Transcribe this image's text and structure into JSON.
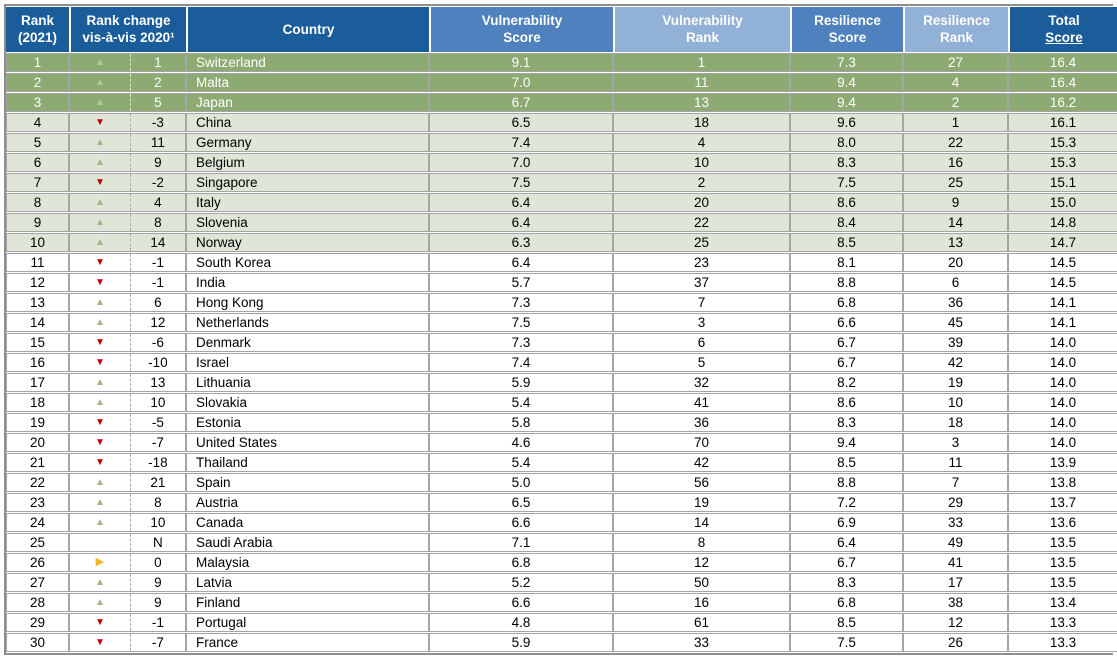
{
  "colors": {
    "header_dark_blue": "#1B5C9B",
    "header_medium_blue": "#4E81BD",
    "header_light_blue": "#92B1D6",
    "top_row_green": "#8DAA72",
    "alt_row_green": "#DFE6D7",
    "arrow_up_green": "#A3B583",
    "arrow_up_green_light": "#B4C797",
    "arrow_down_red": "#C00000",
    "arrow_right_orange": "#F5B323",
    "grid_gray": "#A5A5A8",
    "outer_gray": "#8E8E8E"
  },
  "icons": {
    "up": "▲",
    "down": "▼",
    "right": "▶",
    "none": ""
  },
  "table": {
    "headers": [
      {
        "id": "rank",
        "line1": "Rank",
        "line2": "(2021)"
      },
      {
        "id": "rank_change",
        "line1": "Rank change",
        "line2": "vis-à-vis 2020¹"
      },
      {
        "id": "country",
        "line1": "Country",
        "line2": ""
      },
      {
        "id": "vulnerability_score",
        "line1": "Vulnerability",
        "line2": "Score"
      },
      {
        "id": "vulnerability_rank",
        "line1": "Vulnerability",
        "line2": "Rank"
      },
      {
        "id": "resilience_score",
        "line1": "Resilience",
        "line2": "Score"
      },
      {
        "id": "resilience_rank",
        "line1": "Resilience",
        "line2": "Rank"
      },
      {
        "id": "total_score",
        "line1": "Total",
        "line2": "Score"
      }
    ],
    "rows": [
      {
        "rank": "1",
        "change_direction": "up",
        "change_value": "1",
        "country": "Switzerland",
        "vulnerability_score": "9.1",
        "vulnerability_rank": "1",
        "resilience_score": "7.3",
        "resilience_rank": "27",
        "total_score": "16.4",
        "band": "top3"
      },
      {
        "rank": "2",
        "change_direction": "up",
        "change_value": "2",
        "country": "Malta",
        "vulnerability_score": "7.0",
        "vulnerability_rank": "11",
        "resilience_score": "9.4",
        "resilience_rank": "4",
        "total_score": "16.4",
        "band": "top3"
      },
      {
        "rank": "3",
        "change_direction": "up",
        "change_value": "5",
        "country": "Japan",
        "vulnerability_score": "6.7",
        "vulnerability_rank": "13",
        "resilience_score": "9.4",
        "resilience_rank": "2",
        "total_score": "16.2",
        "band": "top3"
      },
      {
        "rank": "4",
        "change_direction": "down",
        "change_value": "-3",
        "country": "China",
        "vulnerability_score": "6.5",
        "vulnerability_rank": "18",
        "resilience_score": "9.6",
        "resilience_rank": "1",
        "total_score": "16.1",
        "band": "mid"
      },
      {
        "rank": "5",
        "change_direction": "up",
        "change_value": "11",
        "country": "Germany",
        "vulnerability_score": "7.4",
        "vulnerability_rank": "4",
        "resilience_score": "8.0",
        "resilience_rank": "22",
        "total_score": "15.3",
        "band": "mid"
      },
      {
        "rank": "6",
        "change_direction": "up",
        "change_value": "9",
        "country": "Belgium",
        "vulnerability_score": "7.0",
        "vulnerability_rank": "10",
        "resilience_score": "8.3",
        "resilience_rank": "16",
        "total_score": "15.3",
        "band": "mid"
      },
      {
        "rank": "7",
        "change_direction": "down",
        "change_value": "-2",
        "country": "Singapore",
        "vulnerability_score": "7.5",
        "vulnerability_rank": "2",
        "resilience_score": "7.5",
        "resilience_rank": "25",
        "total_score": "15.1",
        "band": "mid"
      },
      {
        "rank": "8",
        "change_direction": "up",
        "change_value": "4",
        "country": "Italy",
        "vulnerability_score": "6.4",
        "vulnerability_rank": "20",
        "resilience_score": "8.6",
        "resilience_rank": "9",
        "total_score": "15.0",
        "band": "mid"
      },
      {
        "rank": "9",
        "change_direction": "up",
        "change_value": "8",
        "country": "Slovenia",
        "vulnerability_score": "6.4",
        "vulnerability_rank": "22",
        "resilience_score": "8.4",
        "resilience_rank": "14",
        "total_score": "14.8",
        "band": "mid"
      },
      {
        "rank": "10",
        "change_direction": "up",
        "change_value": "14",
        "country": "Norway",
        "vulnerability_score": "6.3",
        "vulnerability_rank": "25",
        "resilience_score": "8.5",
        "resilience_rank": "13",
        "total_score": "14.7",
        "band": "mid"
      },
      {
        "rank": "11",
        "change_direction": "down",
        "change_value": "-1",
        "country": "South Korea",
        "vulnerability_score": "6.4",
        "vulnerability_rank": "23",
        "resilience_score": "8.1",
        "resilience_rank": "20",
        "total_score": "14.5",
        "band": "plain"
      },
      {
        "rank": "12",
        "change_direction": "down",
        "change_value": "-1",
        "country": "India",
        "vulnerability_score": "5.7",
        "vulnerability_rank": "37",
        "resilience_score": "8.8",
        "resilience_rank": "6",
        "total_score": "14.5",
        "band": "plain"
      },
      {
        "rank": "13",
        "change_direction": "up",
        "change_value": "6",
        "country": "Hong Kong",
        "vulnerability_score": "7.3",
        "vulnerability_rank": "7",
        "resilience_score": "6.8",
        "resilience_rank": "36",
        "total_score": "14.1",
        "band": "plain"
      },
      {
        "rank": "14",
        "change_direction": "up",
        "change_value": "12",
        "country": "Netherlands",
        "vulnerability_score": "7.5",
        "vulnerability_rank": "3",
        "resilience_score": "6.6",
        "resilience_rank": "45",
        "total_score": "14.1",
        "band": "plain"
      },
      {
        "rank": "15",
        "change_direction": "down",
        "change_value": "-6",
        "country": "Denmark",
        "vulnerability_score": "7.3",
        "vulnerability_rank": "6",
        "resilience_score": "6.7",
        "resilience_rank": "39",
        "total_score": "14.0",
        "band": "plain"
      },
      {
        "rank": "16",
        "change_direction": "down",
        "change_value": "-10",
        "country": "Israel",
        "vulnerability_score": "7.4",
        "vulnerability_rank": "5",
        "resilience_score": "6.7",
        "resilience_rank": "42",
        "total_score": "14.0",
        "band": "plain"
      },
      {
        "rank": "17",
        "change_direction": "up",
        "change_value": "13",
        "country": "Lithuania",
        "vulnerability_score": "5.9",
        "vulnerability_rank": "32",
        "resilience_score": "8.2",
        "resilience_rank": "19",
        "total_score": "14.0",
        "band": "plain"
      },
      {
        "rank": "18",
        "change_direction": "up",
        "change_value": "10",
        "country": "Slovakia",
        "vulnerability_score": "5.4",
        "vulnerability_rank": "41",
        "resilience_score": "8.6",
        "resilience_rank": "10",
        "total_score": "14.0",
        "band": "plain"
      },
      {
        "rank": "19",
        "change_direction": "down",
        "change_value": "-5",
        "country": "Estonia",
        "vulnerability_score": "5.8",
        "vulnerability_rank": "36",
        "resilience_score": "8.3",
        "resilience_rank": "18",
        "total_score": "14.0",
        "band": "plain"
      },
      {
        "rank": "20",
        "change_direction": "down",
        "change_value": "-7",
        "country": "United States",
        "vulnerability_score": "4.6",
        "vulnerability_rank": "70",
        "resilience_score": "9.4",
        "resilience_rank": "3",
        "total_score": "14.0",
        "band": "plain"
      },
      {
        "rank": "21",
        "change_direction": "down",
        "change_value": "-18",
        "country": "Thailand",
        "vulnerability_score": "5.4",
        "vulnerability_rank": "42",
        "resilience_score": "8.5",
        "resilience_rank": "11",
        "total_score": "13.9",
        "band": "plain"
      },
      {
        "rank": "22",
        "change_direction": "up",
        "change_value": "21",
        "country": "Spain",
        "vulnerability_score": "5.0",
        "vulnerability_rank": "56",
        "resilience_score": "8.8",
        "resilience_rank": "7",
        "total_score": "13.8",
        "band": "plain"
      },
      {
        "rank": "23",
        "change_direction": "up",
        "change_value": "8",
        "country": "Austria",
        "vulnerability_score": "6.5",
        "vulnerability_rank": "19",
        "resilience_score": "7.2",
        "resilience_rank": "29",
        "total_score": "13.7",
        "band": "plain"
      },
      {
        "rank": "24",
        "change_direction": "up",
        "change_value": "10",
        "country": "Canada",
        "vulnerability_score": "6.6",
        "vulnerability_rank": "14",
        "resilience_score": "6.9",
        "resilience_rank": "33",
        "total_score": "13.6",
        "band": "plain"
      },
      {
        "rank": "25",
        "change_direction": "none",
        "change_value": "N",
        "country": "Saudi Arabia",
        "vulnerability_score": "7.1",
        "vulnerability_rank": "8",
        "resilience_score": "6.4",
        "resilience_rank": "49",
        "total_score": "13.5",
        "band": "plain"
      },
      {
        "rank": "26",
        "change_direction": "right",
        "change_value": "0",
        "country": "Malaysia",
        "vulnerability_score": "6.8",
        "vulnerability_rank": "12",
        "resilience_score": "6.7",
        "resilience_rank": "41",
        "total_score": "13.5",
        "band": "plain"
      },
      {
        "rank": "27",
        "change_direction": "up",
        "change_value": "9",
        "country": "Latvia",
        "vulnerability_score": "5.2",
        "vulnerability_rank": "50",
        "resilience_score": "8.3",
        "resilience_rank": "17",
        "total_score": "13.5",
        "band": "plain"
      },
      {
        "rank": "28",
        "change_direction": "up",
        "change_value": "9",
        "country": "Finland",
        "vulnerability_score": "6.6",
        "vulnerability_rank": "16",
        "resilience_score": "6.8",
        "resilience_rank": "38",
        "total_score": "13.4",
        "band": "plain"
      },
      {
        "rank": "29",
        "change_direction": "down",
        "change_value": "-1",
        "country": "Portugal",
        "vulnerability_score": "4.8",
        "vulnerability_rank": "61",
        "resilience_score": "8.5",
        "resilience_rank": "12",
        "total_score": "13.3",
        "band": "plain"
      },
      {
        "rank": "30",
        "change_direction": "down",
        "change_value": "-7",
        "country": "France",
        "vulnerability_score": "5.9",
        "vulnerability_rank": "33",
        "resilience_score": "7.5",
        "resilience_rank": "26",
        "total_score": "13.3",
        "band": "plain"
      }
    ]
  }
}
